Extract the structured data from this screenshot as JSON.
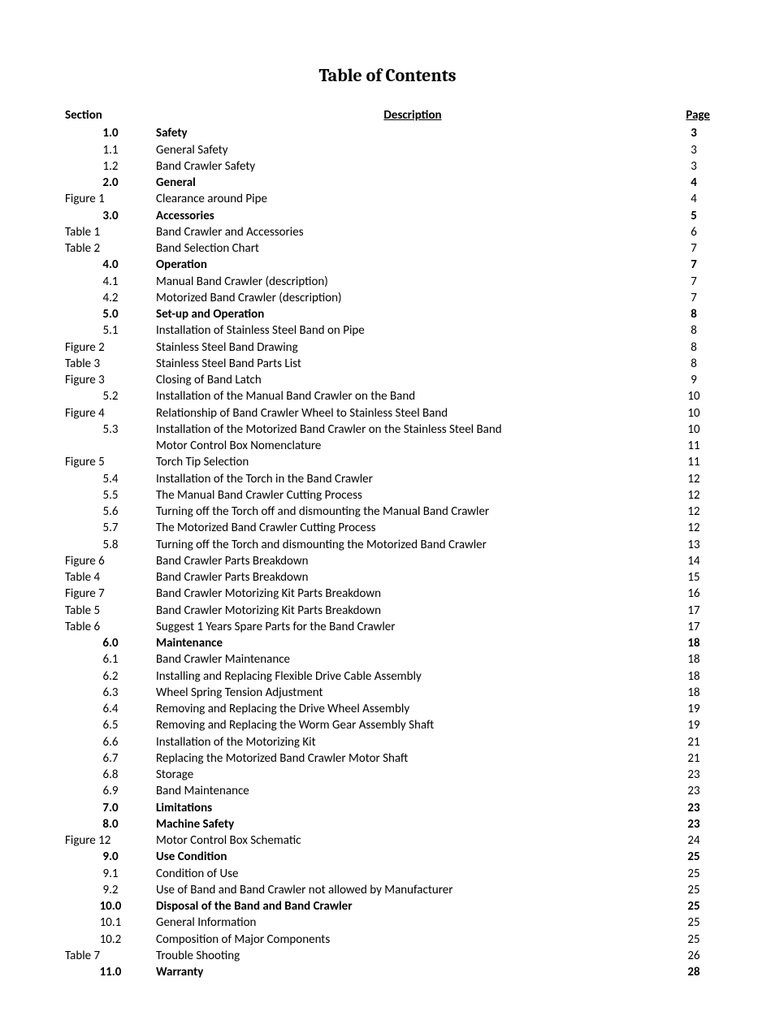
{
  "title": "Table of Contents",
  "header": {
    "section": "Section",
    "description": "Description",
    "page": "Page"
  },
  "rows": [
    {
      "section": "1.0",
      "align": "center",
      "bold": true,
      "desc": "Safety",
      "page": "3"
    },
    {
      "section": "1.1",
      "align": "center",
      "bold": false,
      "desc": "General Safety",
      "page": "3"
    },
    {
      "section": "1.2",
      "align": "center",
      "bold": false,
      "desc": "Band Crawler Safety",
      "page": "3"
    },
    {
      "section": "2.0",
      "align": "center",
      "bold": true,
      "desc": "General",
      "page": "4"
    },
    {
      "section": "Figure 1",
      "align": "left",
      "bold": false,
      "desc": "Clearance around Pipe",
      "page": "4"
    },
    {
      "section": "3.0",
      "align": "center",
      "bold": true,
      "desc": "Accessories",
      "page": "5"
    },
    {
      "section": "Table 1",
      "align": "left",
      "bold": false,
      "desc": "Band Crawler and Accessories",
      "page": "6"
    },
    {
      "section": "Table 2",
      "align": "left",
      "bold": false,
      "desc": "Band Selection Chart",
      "page": "7"
    },
    {
      "section": "4.0",
      "align": "center",
      "bold": true,
      "desc": "Operation",
      "page": "7"
    },
    {
      "section": "4.1",
      "align": "center",
      "bold": false,
      "desc": "Manual Band Crawler (description)",
      "page": "7"
    },
    {
      "section": "4.2",
      "align": "center",
      "bold": false,
      "desc": "Motorized Band Crawler (description)",
      "page": "7"
    },
    {
      "section": "5.0",
      "align": "center",
      "bold": true,
      "desc": "Set-up and Operation",
      "page": "8"
    },
    {
      "section": "5.1",
      "align": "center",
      "bold": false,
      "desc": "Installation of Stainless Steel Band on Pipe",
      "page": "8"
    },
    {
      "section": "Figure 2",
      "align": "left",
      "bold": false,
      "desc": "Stainless Steel Band Drawing",
      "page": "8"
    },
    {
      "section": "Table 3",
      "align": "left",
      "bold": false,
      "desc": "Stainless Steel Band Parts List",
      "page": "8"
    },
    {
      "section": "Figure 3",
      "align": "left",
      "bold": false,
      "desc": "Closing of Band Latch",
      "page": "9"
    },
    {
      "section": "5.2",
      "align": "center",
      "bold": false,
      "desc": "Installation of the Manual Band Crawler on the Band",
      "page": "10"
    },
    {
      "section": "Figure 4",
      "align": "left",
      "bold": false,
      "desc": "Relationship of Band Crawler Wheel to Stainless Steel Band",
      "page": "10"
    },
    {
      "section": "5.3",
      "align": "center",
      "bold": false,
      "desc": "Installation of the Motorized Band Crawler on the Stainless Steel Band",
      "page": "10"
    },
    {
      "section": "",
      "align": "center",
      "bold": false,
      "desc": "Motor Control Box Nomenclature",
      "page": "11"
    },
    {
      "section": "Figure 5",
      "align": "left",
      "bold": false,
      "desc": "Torch Tip Selection",
      "page": "11"
    },
    {
      "section": "5.4",
      "align": "center",
      "bold": false,
      "desc": "Installation of the Torch in the Band Crawler",
      "page": "12"
    },
    {
      "section": "5.5",
      "align": "center",
      "bold": false,
      "desc": "The Manual Band Crawler Cutting Process",
      "page": "12"
    },
    {
      "section": "5.6",
      "align": "center",
      "bold": false,
      "desc": "Turning off the Torch off and dismounting the Manual Band Crawler",
      "page": "12"
    },
    {
      "section": "5.7",
      "align": "center",
      "bold": false,
      "desc": "The Motorized Band Crawler Cutting Process",
      "page": "12"
    },
    {
      "section": "5.8",
      "align": "center",
      "bold": false,
      "desc": "Turning off the Torch and dismounting the Motorized Band Crawler",
      "page": "13"
    },
    {
      "section": "Figure 6",
      "align": "left",
      "bold": false,
      "desc": "Band Crawler Parts Breakdown",
      "page": "14"
    },
    {
      "section": "Table 4",
      "align": "left",
      "bold": false,
      "desc": "Band Crawler Parts Breakdown",
      "page": "15"
    },
    {
      "section": "Figure 7",
      "align": "left",
      "bold": false,
      "desc": "Band Crawler Motorizing Kit Parts Breakdown",
      "page": "16"
    },
    {
      "section": "Table 5",
      "align": "left",
      "bold": false,
      "desc": "Band Crawler Motorizing Kit Parts Breakdown",
      "page": "17"
    },
    {
      "section": "Table 6",
      "align": "left",
      "bold": false,
      "desc": "Suggest 1 Years Spare Parts for the Band Crawler",
      "page": "17"
    },
    {
      "section": "6.0",
      "align": "center",
      "bold": true,
      "desc": "Maintenance",
      "page": "18"
    },
    {
      "section": "6.1",
      "align": "center",
      "bold": false,
      "desc": "Band Crawler Maintenance",
      "page": "18"
    },
    {
      "section": "6.2",
      "align": "center",
      "bold": false,
      "desc": "Installing and Replacing Flexible Drive Cable Assembly",
      "page": "18"
    },
    {
      "section": "6.3",
      "align": "center",
      "bold": false,
      "desc": "Wheel Spring Tension Adjustment",
      "page": "18"
    },
    {
      "section": "6.4",
      "align": "center",
      "bold": false,
      "desc": "Removing and Replacing the Drive Wheel Assembly",
      "page": "19"
    },
    {
      "section": "6.5",
      "align": "center",
      "bold": false,
      "desc": "Removing and Replacing the Worm Gear Assembly Shaft",
      "page": "19"
    },
    {
      "section": "6.6",
      "align": "center",
      "bold": false,
      "desc": "Installation of the Motorizing Kit",
      "page": "21"
    },
    {
      "section": "6.7",
      "align": "center",
      "bold": false,
      "desc": "Replacing the Motorized Band Crawler Motor Shaft",
      "page": "21"
    },
    {
      "section": "6.8",
      "align": "center",
      "bold": false,
      "desc": "Storage",
      "page": "23"
    },
    {
      "section": "6.9",
      "align": "center",
      "bold": false,
      "desc": "Band Maintenance",
      "page": "23"
    },
    {
      "section": "7.0",
      "align": "center",
      "bold": true,
      "desc": "Limitations",
      "page": "23"
    },
    {
      "section": "8.0",
      "align": "center",
      "bold": true,
      "desc": "Machine Safety",
      "page": "23"
    },
    {
      "section": "Figure 12",
      "align": "left",
      "bold": false,
      "desc": "Motor Control Box Schematic",
      "page": "24"
    },
    {
      "section": "9.0",
      "align": "center",
      "bold": true,
      "desc": "Use Condition",
      "page": "25"
    },
    {
      "section": "9.1",
      "align": "center",
      "bold": false,
      "desc": "Condition of Use",
      "page": "25"
    },
    {
      "section": "9.2",
      "align": "center",
      "bold": false,
      "desc": "Use of Band and Band Crawler not allowed by Manufacturer",
      "page": "25"
    },
    {
      "section": "10.0",
      "align": "center",
      "bold": true,
      "desc": "Disposal of the Band and Band Crawler",
      "page": "25"
    },
    {
      "section": "10.1",
      "align": "center",
      "bold": false,
      "desc": "General Information",
      "page": "25"
    },
    {
      "section": "10.2",
      "align": "center",
      "bold": false,
      "desc": "Composition of Major Components",
      "page": "25"
    },
    {
      "section": "Table 7",
      "align": "left",
      "bold": false,
      "desc": "Trouble Shooting",
      "page": "26"
    },
    {
      "section": "11.0",
      "align": "center",
      "bold": true,
      "desc": "Warranty",
      "page": "28"
    }
  ]
}
